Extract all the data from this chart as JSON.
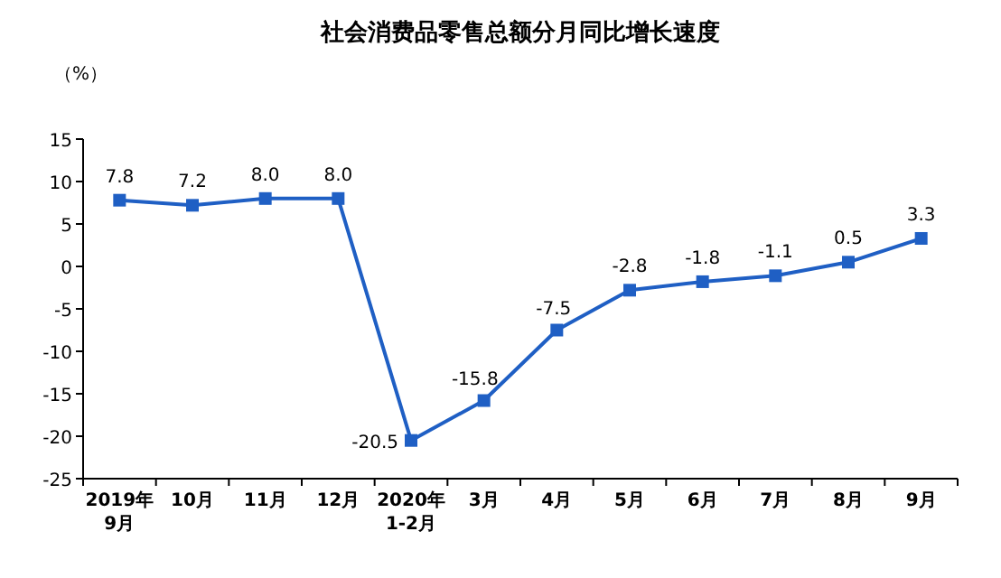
{
  "chart_data": {
    "type": "line",
    "title": "社会消费品零售总额分月同比增长速度",
    "ylabel": "（%）",
    "categories": [
      "2019年\n9月",
      "10月",
      "11月",
      "12月",
      "2020年\n1-2月",
      "3月",
      "4月",
      "5月",
      "6月",
      "7月",
      "8月",
      "9月"
    ],
    "series": [
      {
        "color": "#1f5fc4",
        "values": [
          7.8,
          7.2,
          8.0,
          8.0,
          -20.5,
          -15.8,
          -7.5,
          -2.8,
          -1.8,
          -1.1,
          0.5,
          3.3
        ],
        "value_labels": [
          "7.8",
          "7.2",
          "8.0",
          "8.0",
          "-20.5",
          "-15.8",
          "-7.5",
          "-2.8",
          "-1.8",
          "-1.1",
          "0.5",
          "3.3"
        ]
      }
    ],
    "ylim": [
      -25,
      15
    ],
    "yticks": [
      -25,
      -20,
      -15,
      -10,
      -5,
      0,
      5,
      10,
      15
    ],
    "marker": "square",
    "line_style": "solid",
    "grid": false
  }
}
